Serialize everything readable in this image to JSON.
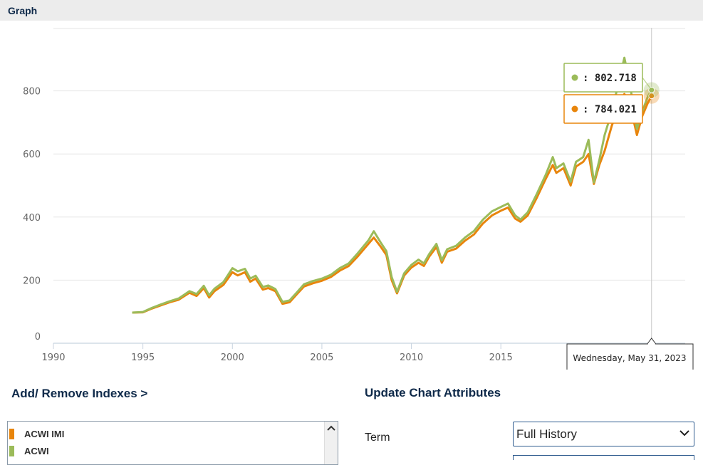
{
  "header": {
    "title": "Graph"
  },
  "chart_data": {
    "type": "line",
    "xlim": [
      1990,
      2025.3
    ],
    "ylim": [
      0,
      1000
    ],
    "x_ticks": [
      1990,
      1995,
      2000,
      2005,
      2010,
      2015
    ],
    "y_ticks": [
      0,
      200,
      400,
      600,
      800
    ],
    "grid": true,
    "series": [
      {
        "name": "ACWI IMI",
        "color": "#e8850c",
        "points": [
          [
            1994.4,
            97
          ],
          [
            1995.0,
            98
          ],
          [
            1995.5,
            110
          ],
          [
            1996.0,
            120
          ],
          [
            1996.5,
            130
          ],
          [
            1997.0,
            138
          ],
          [
            1997.6,
            160
          ],
          [
            1998.0,
            150
          ],
          [
            1998.4,
            175
          ],
          [
            1998.7,
            145
          ],
          [
            1999.0,
            165
          ],
          [
            1999.5,
            185
          ],
          [
            2000.0,
            225
          ],
          [
            2000.3,
            215
          ],
          [
            2000.7,
            225
          ],
          [
            2001.0,
            195
          ],
          [
            2001.3,
            205
          ],
          [
            2001.7,
            170
          ],
          [
            2002.0,
            175
          ],
          [
            2002.4,
            165
          ],
          [
            2002.8,
            125
          ],
          [
            2003.2,
            130
          ],
          [
            2003.6,
            155
          ],
          [
            2004.0,
            180
          ],
          [
            2004.5,
            190
          ],
          [
            2005.0,
            198
          ],
          [
            2005.5,
            210
          ],
          [
            2006.0,
            230
          ],
          [
            2006.5,
            245
          ],
          [
            2007.0,
            275
          ],
          [
            2007.6,
            315
          ],
          [
            2007.9,
            335
          ],
          [
            2008.3,
            305
          ],
          [
            2008.6,
            280
          ],
          [
            2008.9,
            200
          ],
          [
            2009.2,
            158
          ],
          [
            2009.6,
            215
          ],
          [
            2010.0,
            240
          ],
          [
            2010.4,
            255
          ],
          [
            2010.7,
            245
          ],
          [
            2011.0,
            275
          ],
          [
            2011.4,
            305
          ],
          [
            2011.7,
            255
          ],
          [
            2012.0,
            290
          ],
          [
            2012.5,
            300
          ],
          [
            2013.0,
            325
          ],
          [
            2013.5,
            345
          ],
          [
            2014.0,
            380
          ],
          [
            2014.5,
            405
          ],
          [
            2015.0,
            420
          ],
          [
            2015.4,
            430
          ],
          [
            2015.8,
            395
          ],
          [
            2016.1,
            385
          ],
          [
            2016.5,
            405
          ],
          [
            2017.0,
            460
          ],
          [
            2017.5,
            520
          ],
          [
            2017.9,
            565
          ],
          [
            2018.1,
            540
          ],
          [
            2018.5,
            555
          ],
          [
            2018.9,
            500
          ],
          [
            2019.2,
            560
          ],
          [
            2019.6,
            575
          ],
          [
            2019.9,
            600
          ],
          [
            2020.2,
            505
          ],
          [
            2020.5,
            565
          ],
          [
            2020.8,
            610
          ],
          [
            2021.2,
            690
          ],
          [
            2021.6,
            750
          ],
          [
            2021.9,
            790
          ],
          [
            2022.2,
            760
          ],
          [
            2022.6,
            660
          ],
          [
            2022.9,
            720
          ],
          [
            2023.2,
            760
          ],
          [
            2023.42,
            784.021
          ]
        ]
      },
      {
        "name": "ACWI",
        "color": "#9bbb59",
        "points": [
          [
            1994.4,
            97
          ],
          [
            1995.0,
            99
          ],
          [
            1995.5,
            112
          ],
          [
            1996.0,
            123
          ],
          [
            1996.5,
            133
          ],
          [
            1997.0,
            142
          ],
          [
            1997.6,
            165
          ],
          [
            1998.0,
            156
          ],
          [
            1998.4,
            182
          ],
          [
            1998.7,
            152
          ],
          [
            1999.0,
            173
          ],
          [
            1999.5,
            194
          ],
          [
            2000.0,
            238
          ],
          [
            2000.3,
            228
          ],
          [
            2000.7,
            236
          ],
          [
            2001.0,
            205
          ],
          [
            2001.3,
            214
          ],
          [
            2001.7,
            178
          ],
          [
            2002.0,
            183
          ],
          [
            2002.4,
            172
          ],
          [
            2002.8,
            131
          ],
          [
            2003.2,
            136
          ],
          [
            2003.6,
            161
          ],
          [
            2004.0,
            187
          ],
          [
            2004.5,
            197
          ],
          [
            2005.0,
            205
          ],
          [
            2005.5,
            217
          ],
          [
            2006.0,
            238
          ],
          [
            2006.5,
            253
          ],
          [
            2007.0,
            285
          ],
          [
            2007.6,
            326
          ],
          [
            2007.9,
            355
          ],
          [
            2008.3,
            318
          ],
          [
            2008.6,
            292
          ],
          [
            2008.9,
            210
          ],
          [
            2009.2,
            163
          ],
          [
            2009.6,
            222
          ],
          [
            2010.0,
            248
          ],
          [
            2010.4,
            265
          ],
          [
            2010.7,
            253
          ],
          [
            2011.0,
            283
          ],
          [
            2011.4,
            315
          ],
          [
            2011.7,
            263
          ],
          [
            2012.0,
            298
          ],
          [
            2012.5,
            309
          ],
          [
            2013.0,
            335
          ],
          [
            2013.5,
            356
          ],
          [
            2014.0,
            392
          ],
          [
            2014.5,
            418
          ],
          [
            2015.0,
            432
          ],
          [
            2015.4,
            443
          ],
          [
            2015.8,
            405
          ],
          [
            2016.1,
            392
          ],
          [
            2016.5,
            415
          ],
          [
            2017.0,
            472
          ],
          [
            2017.5,
            533
          ],
          [
            2017.9,
            590
          ],
          [
            2018.1,
            555
          ],
          [
            2018.5,
            570
          ],
          [
            2018.9,
            512
          ],
          [
            2019.2,
            575
          ],
          [
            2019.6,
            590
          ],
          [
            2019.9,
            645
          ],
          [
            2020.2,
            510
          ],
          [
            2020.5,
            580
          ],
          [
            2020.8,
            660
          ],
          [
            2021.2,
            735
          ],
          [
            2021.6,
            830
          ],
          [
            2021.9,
            905
          ],
          [
            2022.2,
            825
          ],
          [
            2022.6,
            680
          ],
          [
            2022.9,
            735
          ],
          [
            2023.2,
            780
          ],
          [
            2023.42,
            802.718
          ]
        ]
      }
    ],
    "tooltip": {
      "values": [
        {
          "series": "ACWI",
          "text": ": 802.718",
          "color": "#9bbb59"
        },
        {
          "series": "ACWI IMI",
          "text": ": 784.021",
          "color": "#e8850c"
        }
      ],
      "date": "Wednesday, May 31, 2023",
      "x": 2023.42
    }
  },
  "controls": {
    "add_remove_label": "Add/ Remove Indexes >",
    "update_label": "Update Chart Attributes",
    "index_list": [
      {
        "label": "ACWI IMI",
        "color": "#e8850c"
      },
      {
        "label": "ACWI",
        "color": "#9bbb59"
      }
    ],
    "term_label": "Term",
    "term_value": "Full History"
  },
  "icons": {
    "scroll_up": "chevron-up-icon",
    "dropdown": "chevron-down-icon"
  }
}
